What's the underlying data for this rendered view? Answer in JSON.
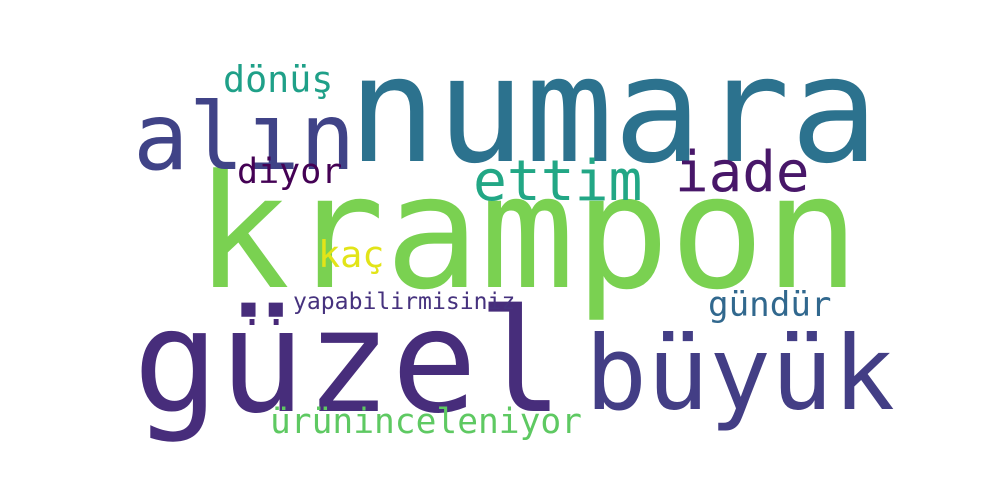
{
  "words": [
    {
      "key": "numara",
      "text": "numara",
      "color": "#2c728e"
    },
    {
      "key": "krampon",
      "text": "krampon",
      "color": "#7ad151"
    },
    {
      "key": "guzel",
      "text": "güzel",
      "color": "#472d7b"
    },
    {
      "key": "buyuk",
      "text": "büyük",
      "color": "#433e85"
    },
    {
      "key": "alin",
      "text": "alın",
      "color": "#404387"
    },
    {
      "key": "ettim",
      "text": "ettim",
      "color": "#22a785"
    },
    {
      "key": "iade",
      "text": "iade",
      "color": "#481769"
    },
    {
      "key": "donus",
      "text": "dönüş",
      "color": "#1fa088"
    },
    {
      "key": "diyor",
      "text": "diyor",
      "color": "#440154"
    },
    {
      "key": "kac",
      "text": "kaç",
      "color": "#e2e418"
    },
    {
      "key": "gundur",
      "text": "gündür",
      "color": "#31688e"
    },
    {
      "key": "yapabilirmisiniz",
      "text": "yapabilirmisiniz",
      "color": "#46327e"
    },
    {
      "key": "dots",
      "text": "..",
      "color": "#482878"
    },
    {
      "key": "uruninceleniyor",
      "text": "ürüninceleniyor",
      "color": "#5ec962"
    }
  ]
}
